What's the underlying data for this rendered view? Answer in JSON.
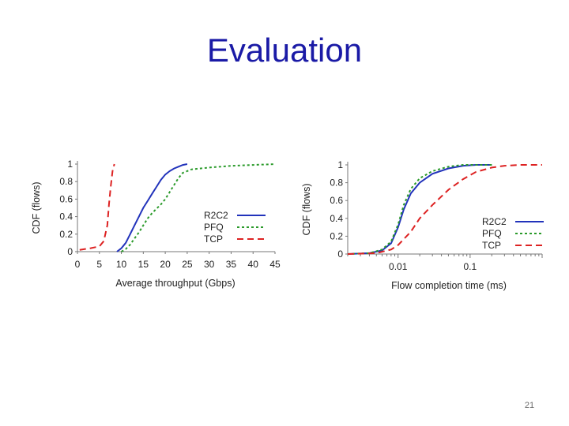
{
  "slide": {
    "title": "Evaluation",
    "page_number": "21"
  },
  "chart_data": [
    {
      "type": "line",
      "xlabel": "Average throughput (Gbps)",
      "ylabel": "CDF (flows)",
      "xlim": [
        0,
        45
      ],
      "ylim": [
        0,
        1
      ],
      "x_ticks": [
        "0",
        "5",
        "10",
        "15",
        "20",
        "25",
        "30",
        "35",
        "40",
        "45"
      ],
      "y_ticks": [
        "0",
        "0.2",
        "0.4",
        "0.6",
        "0.8",
        "1"
      ],
      "grid": false,
      "legend_position": "right",
      "series": [
        {
          "name": "R2C2",
          "color": "#2233bb",
          "dash": "solid",
          "points": [
            [
              9,
              0
            ],
            [
              10,
              0.04
            ],
            [
              11,
              0.1
            ],
            [
              12,
              0.2
            ],
            [
              13,
              0.3
            ],
            [
              14,
              0.4
            ],
            [
              15,
              0.5
            ],
            [
              16,
              0.58
            ],
            [
              17,
              0.66
            ],
            [
              18,
              0.74
            ],
            [
              19,
              0.82
            ],
            [
              20,
              0.88
            ],
            [
              21,
              0.92
            ],
            [
              22,
              0.95
            ],
            [
              23,
              0.97
            ],
            [
              24,
              0.99
            ],
            [
              25,
              1.0
            ]
          ]
        },
        {
          "name": "PFQ",
          "color": "#2a9a2a",
          "dash": "dotted",
          "points": [
            [
              10,
              0
            ],
            [
              11,
              0.03
            ],
            [
              12,
              0.08
            ],
            [
              13,
              0.15
            ],
            [
              14,
              0.22
            ],
            [
              15,
              0.3
            ],
            [
              16,
              0.38
            ],
            [
              17,
              0.44
            ],
            [
              18,
              0.49
            ],
            [
              19,
              0.54
            ],
            [
              20,
              0.6
            ],
            [
              21,
              0.68
            ],
            [
              22,
              0.76
            ],
            [
              23,
              0.84
            ],
            [
              24,
              0.9
            ],
            [
              26,
              0.94
            ],
            [
              30,
              0.96
            ],
            [
              35,
              0.98
            ],
            [
              40,
              0.99
            ],
            [
              45,
              1.0
            ]
          ]
        },
        {
          "name": "TCP",
          "color": "#dd2222",
          "dash": "dashed",
          "points": [
            [
              0.5,
              0.02
            ],
            [
              3,
              0.04
            ],
            [
              5,
              0.06
            ],
            [
              6,
              0.12
            ],
            [
              6.8,
              0.3
            ],
            [
              7.2,
              0.55
            ],
            [
              7.6,
              0.75
            ],
            [
              8,
              0.92
            ],
            [
              8.4,
              1.0
            ]
          ]
        }
      ]
    },
    {
      "type": "line",
      "xlabel": "Flow completion time (ms)",
      "ylabel": "CDF (flows)",
      "x_scale": "log",
      "xlim": [
        0.002,
        1
      ],
      "ylim": [
        0,
        1
      ],
      "x_ticks": [
        {
          "value": 0.01,
          "label": "0.01"
        },
        {
          "value": 0.1,
          "label": "0.1"
        }
      ],
      "y_ticks": [
        "0",
        "0.2",
        "0.4",
        "0.6",
        "0.8",
        "1"
      ],
      "grid": false,
      "legend_position": "right",
      "series": [
        {
          "name": "R2C2",
          "color": "#2233bb",
          "dash": "solid",
          "points": [
            [
              0.002,
              0
            ],
            [
              0.004,
              0.01
            ],
            [
              0.006,
              0.04
            ],
            [
              0.008,
              0.12
            ],
            [
              0.01,
              0.3
            ],
            [
              0.012,
              0.5
            ],
            [
              0.015,
              0.68
            ],
            [
              0.02,
              0.8
            ],
            [
              0.03,
              0.9
            ],
            [
              0.05,
              0.96
            ],
            [
              0.08,
              0.99
            ],
            [
              0.12,
              1.0
            ],
            [
              0.2,
              1.0
            ]
          ]
        },
        {
          "name": "PFQ",
          "color": "#2a9a2a",
          "dash": "dotted",
          "points": [
            [
              0.002,
              0
            ],
            [
              0.004,
              0.01
            ],
            [
              0.006,
              0.05
            ],
            [
              0.008,
              0.14
            ],
            [
              0.01,
              0.33
            ],
            [
              0.012,
              0.55
            ],
            [
              0.015,
              0.73
            ],
            [
              0.02,
              0.85
            ],
            [
              0.03,
              0.93
            ],
            [
              0.05,
              0.98
            ],
            [
              0.08,
              1.0
            ],
            [
              0.2,
              1.0
            ]
          ]
        },
        {
          "name": "TCP",
          "color": "#dd2222",
          "dash": "dashed",
          "points": [
            [
              0.002,
              0
            ],
            [
              0.005,
              0.01
            ],
            [
              0.008,
              0.05
            ],
            [
              0.01,
              0.1
            ],
            [
              0.015,
              0.25
            ],
            [
              0.02,
              0.4
            ],
            [
              0.03,
              0.55
            ],
            [
              0.05,
              0.72
            ],
            [
              0.08,
              0.84
            ],
            [
              0.12,
              0.92
            ],
            [
              0.2,
              0.97
            ],
            [
              0.3,
              0.99
            ],
            [
              0.5,
              1.0
            ],
            [
              1,
              1.0
            ]
          ]
        }
      ]
    }
  ]
}
